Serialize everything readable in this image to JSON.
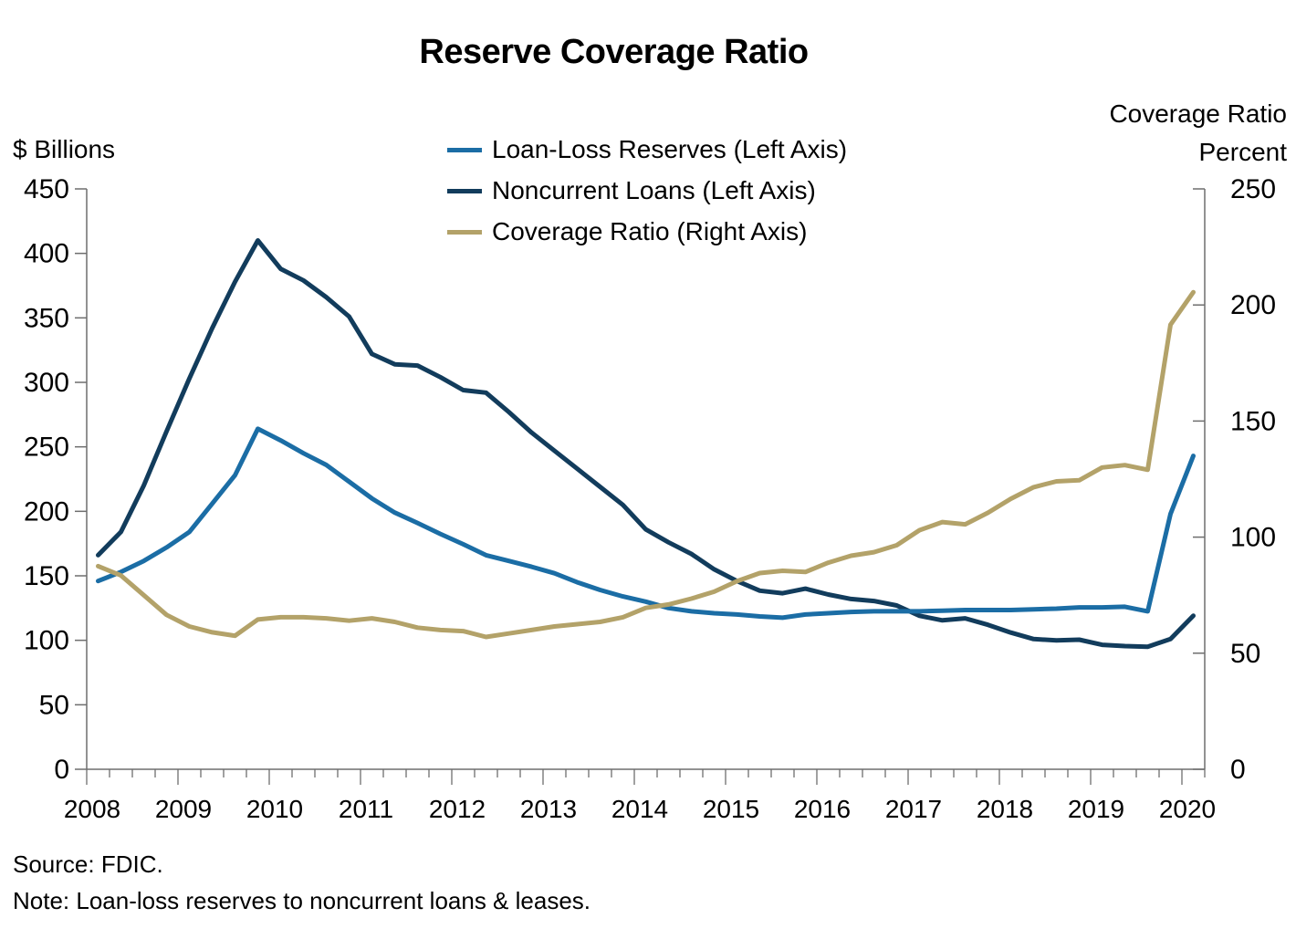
{
  "title": "Reserve Coverage Ratio",
  "left_axis_unit": "$ Billions",
  "right_axis_unit_line1": "Coverage Ratio",
  "right_axis_unit_line2": "Percent",
  "footer": {
    "source": "Source: FDIC.",
    "note": "Note: Loan-loss reserves to noncurrent loans & leases."
  },
  "colors": {
    "reserves_blue": "#1B6DA5",
    "noncurrent_navy": "#123C5C",
    "coverage_tan": "#B3A269",
    "axis_gray": "#6e6e6e"
  },
  "chart_data": {
    "type": "line",
    "frequency": "quarterly",
    "start_period": "2008Q1",
    "end_period": "2020Q1",
    "x_labels": [
      "2008",
      "2009",
      "2010",
      "2011",
      "2012",
      "2013",
      "2014",
      "2015",
      "2016",
      "2017",
      "2018",
      "2019",
      "2020"
    ],
    "left_axis": {
      "ticks": [
        0,
        50,
        100,
        150,
        200,
        250,
        300,
        350,
        400,
        450
      ],
      "ylim": [
        0,
        450
      ]
    },
    "right_axis": {
      "ticks": [
        0,
        50,
        100,
        150,
        200,
        250
      ],
      "ylim": [
        0,
        250
      ]
    },
    "grid": false,
    "legend_position": "top-center",
    "series": [
      {
        "name": "Loan-Loss Reserves (Left Axis)",
        "axis": "left",
        "color": "#1B6DA5",
        "values": [
          146,
          153,
          161.5,
          172,
          184,
          206,
          228,
          264,
          255,
          245,
          236,
          223,
          210,
          199,
          191,
          182.5,
          174.5,
          166,
          161.5,
          157,
          152,
          145,
          139,
          134,
          130,
          125,
          122.5,
          121,
          120,
          118.5,
          117.5,
          120,
          121,
          122,
          122.5,
          122.5,
          122.5,
          123,
          123.5,
          123.5,
          123.5,
          124,
          124.5,
          125.5,
          125.5,
          126,
          122.5,
          198,
          243
        ]
      },
      {
        "name": "Noncurrent Loans (Left Axis)",
        "axis": "left",
        "color": "#123C5C",
        "values": [
          166,
          184,
          220,
          262,
          303,
          342,
          378,
          410,
          388,
          379,
          366,
          351,
          322,
          314,
          313,
          304,
          294,
          292,
          277,
          261,
          247,
          233,
          219,
          205,
          186,
          176,
          167,
          155,
          146,
          138.5,
          136.5,
          140,
          135.5,
          132,
          130.5,
          127,
          119,
          115.5,
          117,
          112,
          106,
          101,
          100,
          100.5,
          96.5,
          95.5,
          95,
          101,
          119
        ]
      },
      {
        "name": "Coverage Ratio (Right Axis)",
        "axis": "right",
        "color": "#B3A269",
        "values": [
          87.5,
          83.5,
          75,
          66.5,
          61.5,
          59,
          57.5,
          64.5,
          65.5,
          65.5,
          65,
          64,
          65,
          63.5,
          61,
          60,
          59.5,
          57,
          58.5,
          60,
          61.5,
          62.5,
          63.5,
          65.5,
          69.5,
          71,
          73.5,
          76.5,
          81,
          84.5,
          85.5,
          85,
          89,
          92,
          93.5,
          96.5,
          103,
          106.5,
          105.5,
          110.5,
          116.5,
          121.5,
          124,
          124.5,
          130,
          131,
          129,
          191.5,
          205.5
        ]
      }
    ]
  }
}
